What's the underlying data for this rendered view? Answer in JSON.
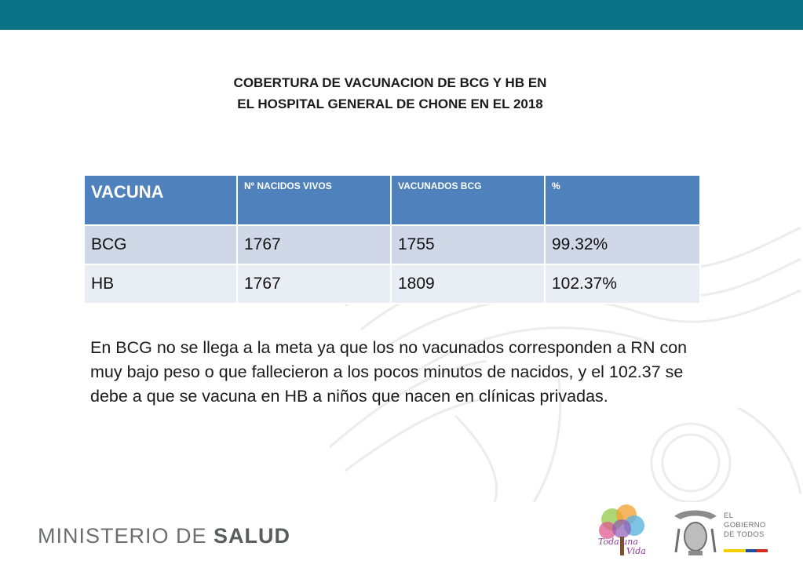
{
  "header": {
    "bar_color": "#0b7185"
  },
  "title": {
    "line1": "COBERTURA DE VACUNACION DE BCG Y HB EN",
    "line2": "EL HOSPITAL GENERAL DE CHONE EN EL 2018"
  },
  "table": {
    "header": [
      "VACUNA",
      "Nº NACIDOS VIVOS",
      "VACUNADOS BCG",
      "%"
    ],
    "rows": [
      [
        "BCG",
        "1767",
        "1755",
        "99.32%"
      ],
      [
        "HB",
        "1767",
        "1809",
        "102.37%"
      ]
    ],
    "header_color": "#4f81bd",
    "row_colors": [
      "#d0d8e8",
      "#e9edf4"
    ]
  },
  "note": {
    "line1": "En BCG no se llega a la meta ya que los no vacunados corresponden a RN con",
    "line2": "muy bajo peso o que fallecieron a los pocos minutos de nacidos, y el 102.37 se",
    "line3": "debe a que se vacuna en HB a niños que nacen en clínicas privadas."
  },
  "footer": {
    "ministerio_prefix": "MINISTERIO DE ",
    "ministerio_bold": "SALUD",
    "toda_una_vida_1": "Toda una",
    "toda_una_vida_2": "Vida",
    "gobierno_line1": "EL",
    "gobierno_line2": "GOBIERNO",
    "gobierno_line3": "DE TODOS",
    "icons": [
      "ecuador-coat-of-arms-watermark",
      "toda-una-vida-tree-logo",
      "ecuador-coat-of-arms-logo"
    ]
  }
}
